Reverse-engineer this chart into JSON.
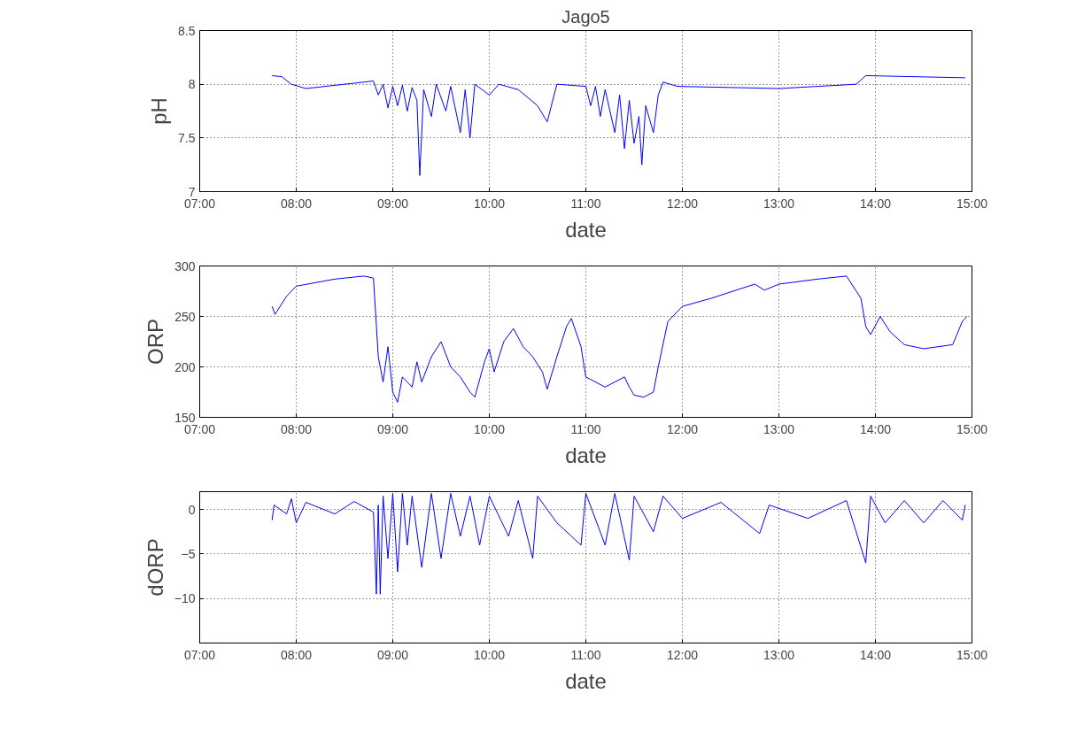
{
  "chart_data": [
    {
      "type": "line",
      "title": "Jago5",
      "xlabel": "date",
      "ylabel": "pH",
      "grid": true,
      "marker": "none",
      "line_style": "solid",
      "xlim": [
        7,
        15
      ],
      "xticks": [
        {
          "value": 7,
          "label": "07:00"
        },
        {
          "value": 8,
          "label": "08:00"
        },
        {
          "value": 9,
          "label": "09:00"
        },
        {
          "value": 10,
          "label": "10:00"
        },
        {
          "value": 11,
          "label": "11:00"
        },
        {
          "value": 12,
          "label": "12:00"
        },
        {
          "value": 13,
          "label": "13:00"
        },
        {
          "value": 14,
          "label": "14:00"
        },
        {
          "value": 15,
          "label": "15:00"
        }
      ],
      "ylim": [
        7,
        8.5
      ],
      "yticks": [
        7,
        7.5,
        8,
        8.5
      ],
      "series": [
        {
          "color": "#0000ff",
          "x": [
            7.75,
            7.85,
            7.95,
            8.1,
            8.4,
            8.8,
            8.85,
            8.9,
            8.95,
            9.0,
            9.05,
            9.1,
            9.15,
            9.2,
            9.25,
            9.28,
            9.32,
            9.4,
            9.45,
            9.55,
            9.6,
            9.7,
            9.75,
            9.8,
            9.85,
            10.0,
            10.1,
            10.3,
            10.5,
            10.6,
            10.7,
            11.0,
            11.05,
            11.1,
            11.15,
            11.2,
            11.3,
            11.35,
            11.4,
            11.45,
            11.5,
            11.55,
            11.58,
            11.62,
            11.7,
            11.75,
            11.8,
            11.95,
            13.0,
            13.8,
            13.9,
            14.93
          ],
          "values": [
            8.08,
            8.07,
            8.0,
            7.96,
            7.99,
            8.03,
            7.9,
            8.0,
            7.78,
            7.98,
            7.8,
            7.99,
            7.75,
            7.97,
            7.85,
            7.15,
            7.95,
            7.7,
            8.0,
            7.75,
            7.98,
            7.55,
            7.95,
            7.5,
            8.0,
            7.9,
            8.0,
            7.95,
            7.8,
            7.65,
            8.0,
            7.98,
            7.8,
            7.98,
            7.7,
            7.95,
            7.55,
            7.9,
            7.4,
            7.85,
            7.45,
            7.7,
            7.25,
            7.8,
            7.55,
            7.9,
            8.02,
            7.98,
            7.96,
            8.0,
            8.08,
            8.06
          ]
        }
      ]
    },
    {
      "type": "line",
      "xlabel": "date",
      "ylabel": "ORP",
      "grid": true,
      "marker": "none",
      "line_style": "solid",
      "xlim": [
        7,
        15
      ],
      "xticks": [
        {
          "value": 7,
          "label": "07:00"
        },
        {
          "value": 8,
          "label": "08:00"
        },
        {
          "value": 9,
          "label": "09:00"
        },
        {
          "value": 10,
          "label": "10:00"
        },
        {
          "value": 11,
          "label": "11:00"
        },
        {
          "value": 12,
          "label": "12:00"
        },
        {
          "value": 13,
          "label": "13:00"
        },
        {
          "value": 14,
          "label": "14:00"
        },
        {
          "value": 15,
          "label": "15:00"
        }
      ],
      "ylim": [
        150,
        300
      ],
      "yticks": [
        150,
        200,
        250,
        300
      ],
      "series": [
        {
          "color": "#0000ff",
          "x": [
            7.75,
            7.78,
            7.9,
            8.0,
            8.4,
            8.7,
            8.8,
            8.85,
            8.9,
            8.95,
            9.0,
            9.05,
            9.1,
            9.2,
            9.25,
            9.3,
            9.4,
            9.5,
            9.6,
            9.7,
            9.8,
            9.85,
            9.95,
            10.0,
            10.05,
            10.15,
            10.25,
            10.35,
            10.45,
            10.55,
            10.6,
            10.7,
            10.8,
            10.85,
            10.95,
            11.0,
            11.2,
            11.4,
            11.45,
            11.5,
            11.6,
            11.7,
            11.75,
            11.85,
            12.0,
            12.3,
            12.75,
            12.85,
            13.0,
            13.4,
            13.7,
            13.85,
            13.9,
            13.95,
            14.05,
            14.15,
            14.3,
            14.5,
            14.8,
            14.9,
            14.95
          ],
          "values": [
            260,
            252,
            270,
            280,
            287,
            290,
            288,
            210,
            185,
            220,
            175,
            165,
            190,
            180,
            205,
            185,
            210,
            225,
            200,
            190,
            175,
            170,
            205,
            218,
            195,
            225,
            238,
            220,
            210,
            195,
            178,
            210,
            240,
            248,
            220,
            190,
            180,
            190,
            180,
            172,
            170,
            175,
            200,
            245,
            260,
            268,
            282,
            276,
            282,
            287,
            290,
            268,
            240,
            232,
            250,
            235,
            222,
            218,
            222,
            245,
            250
          ]
        }
      ]
    },
    {
      "type": "line",
      "xlabel": "date",
      "ylabel": "dORP",
      "grid": true,
      "marker": "none",
      "line_style": "solid",
      "xlim": [
        7,
        15
      ],
      "xticks": [
        {
          "value": 7,
          "label": "07:00"
        },
        {
          "value": 8,
          "label": "08:00"
        },
        {
          "value": 9,
          "label": "09:00"
        },
        {
          "value": 10,
          "label": "10:00"
        },
        {
          "value": 11,
          "label": "11:00"
        },
        {
          "value": 12,
          "label": "12:00"
        },
        {
          "value": 13,
          "label": "13:00"
        },
        {
          "value": 14,
          "label": "14:00"
        },
        {
          "value": 15,
          "label": "15:00"
        }
      ],
      "ylim": [
        -15,
        2
      ],
      "yticks": [
        -10,
        -5,
        0
      ],
      "series": [
        {
          "color": "#0000ff",
          "x": [
            7.75,
            7.77,
            7.9,
            7.95,
            8.0,
            8.1,
            8.4,
            8.6,
            8.8,
            8.83,
            8.85,
            8.87,
            8.9,
            8.95,
            9.0,
            9.05,
            9.1,
            9.15,
            9.2,
            9.3,
            9.4,
            9.5,
            9.6,
            9.7,
            9.8,
            9.9,
            10.0,
            10.2,
            10.3,
            10.45,
            10.5,
            10.7,
            10.95,
            11.0,
            11.2,
            11.3,
            11.45,
            11.5,
            11.7,
            11.8,
            12.0,
            12.4,
            12.8,
            12.9,
            13.3,
            13.7,
            13.9,
            13.95,
            14.1,
            14.3,
            14.5,
            14.7,
            14.9,
            14.93
          ],
          "values": [
            -1.2,
            0.5,
            -0.5,
            1.2,
            -1.5,
            0.8,
            -0.5,
            0.9,
            -0.3,
            -9.5,
            0.5,
            -9.5,
            1.5,
            -5.5,
            1.8,
            -7,
            1.8,
            -4,
            1.5,
            -6.5,
            1.8,
            -5.5,
            1.8,
            -3,
            1.5,
            -4,
            1.5,
            -3,
            1,
            -5.5,
            1.5,
            -1.5,
            -4,
            1.8,
            -4,
            1.8,
            -5.7,
            1.5,
            -2.5,
            1.5,
            -1,
            0.8,
            -2.7,
            0.5,
            -1,
            1,
            -6,
            1.5,
            -1.5,
            1,
            -1.5,
            1,
            -1.2,
            0.5
          ]
        }
      ]
    }
  ]
}
